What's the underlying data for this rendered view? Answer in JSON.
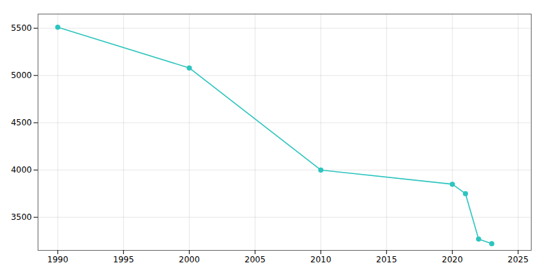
{
  "chart_data": {
    "type": "line",
    "x": [
      1990,
      2000,
      2010,
      2020,
      2021,
      2022,
      2023
    ],
    "values": [
      5510,
      5080,
      4000,
      3850,
      3750,
      3270,
      3220
    ],
    "color": "#2DC5BF",
    "marker": "circle",
    "xlim": [
      1988.5,
      2026
    ],
    "ylim": [
      3150,
      5650
    ],
    "xticks": [
      1990,
      1995,
      2000,
      2005,
      2010,
      2015,
      2020,
      2025
    ],
    "yticks": [
      3500,
      4000,
      4500,
      5000,
      5500
    ],
    "grid": true
  }
}
